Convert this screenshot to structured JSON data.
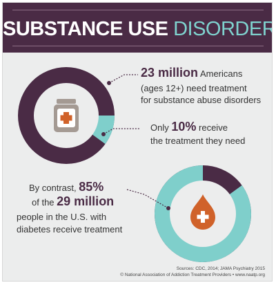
{
  "header": {
    "title_strong": "SUBSTANCE USE",
    "title_light": "DISORDERS"
  },
  "stat_1": {
    "value": "23 million",
    "line1_rest": "Americans",
    "line2": "(ages 12+) need treatment",
    "line3": "for substance abuse disorders"
  },
  "stat_2": {
    "prefix": "Only",
    "value": "10%",
    "line1_rest": "receive",
    "line2": "the treatment they need",
    "fraction": 0.1
  },
  "stat_3": {
    "prefix": "By contrast,",
    "value": "85%",
    "line2_prefix": "of the",
    "value2": "29 million",
    "line3": "people in the U.S. with",
    "line4": "diabetes receive treatment",
    "fraction": 0.85
  },
  "footer": {
    "sources": "Sources: CDC, 2014; JAMA Psychiatry 2015",
    "copyright": "© National Association of Addiction Treatment Providers • www.naatp.org"
  },
  "colors": {
    "plum": "#4a2b45",
    "teal": "#7fcfcb",
    "orange": "#d0622a",
    "background": "#eceded"
  }
}
